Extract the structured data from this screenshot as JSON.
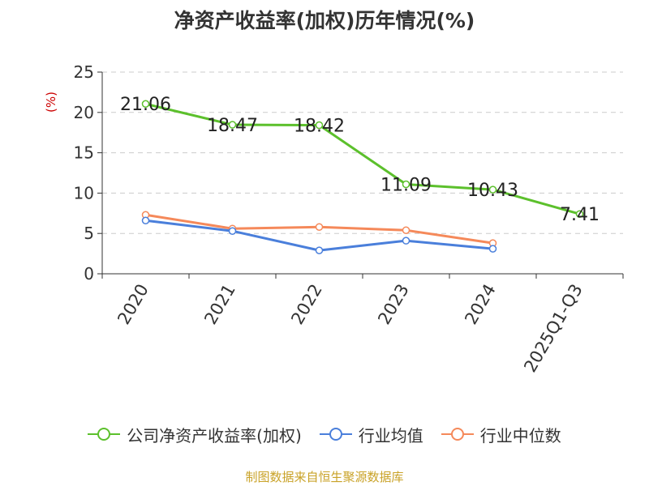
{
  "chart_data": {
    "type": "line",
    "title": "净资产收益率(加权)历年情况(%)",
    "ylabel": "(%)",
    "categories": [
      "2020",
      "2021",
      "2022",
      "2023",
      "2024",
      "2025Q1-Q3"
    ],
    "ylim": [
      0,
      25
    ],
    "yticks": [
      0,
      5,
      10,
      15,
      20,
      25
    ],
    "grid": true,
    "legend_position": "bottom",
    "series": [
      {
        "name": "公司净资产收益率(加权)",
        "color": "#5cc02c",
        "values": [
          21.06,
          18.47,
          18.42,
          11.09,
          10.43,
          7.41
        ],
        "labels": [
          "21.06",
          "18.47",
          "18.42",
          "11.09",
          "10.43",
          "7.41"
        ]
      },
      {
        "name": "行业均值",
        "color": "#4a7fdb",
        "values": [
          6.6,
          5.3,
          2.9,
          4.1,
          3.1,
          null
        ]
      },
      {
        "name": "行业中位数",
        "color": "#f5895a",
        "values": [
          7.3,
          5.6,
          5.8,
          5.4,
          3.8,
          null
        ]
      }
    ]
  },
  "source_note": "制图数据来自恒生聚源数据库"
}
